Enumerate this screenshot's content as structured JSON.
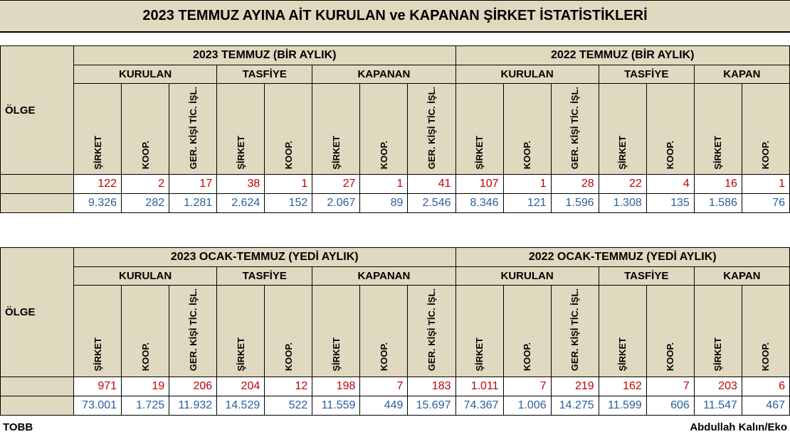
{
  "title": "2023 TEMMUZ AYINA AİT KURULAN ve KAPANAN ŞİRKET İSTATİSTİKLERİ",
  "row_label": "ÖLGE",
  "periods_top": [
    "2023 TEMMUZ (BİR AYLIK)",
    "2022 TEMMUZ (BİR AYLIK)"
  ],
  "periods_bottom": [
    "2023 OCAK-TEMMUZ (YEDİ AYLIK)",
    "2022 OCAK-TEMMUZ (YEDİ AYLIK)"
  ],
  "subgroups": [
    "KURULAN",
    "TASFİYE",
    "KAPANAN",
    "KURULAN",
    "TASFİYE",
    "KAPAN"
  ],
  "subgroup_spans": [
    3,
    2,
    3,
    3,
    2,
    2
  ],
  "columns": [
    "ŞİRKET",
    "KOOP.",
    "GER. KİŞİ TİC. İŞL.",
    "ŞİRKET",
    "KOOP.",
    "ŞİRKET",
    "KOOP.",
    "GER. KİŞİ TİC. İŞL.",
    "ŞİRKET",
    "KOOP.",
    "GER. KİŞİ TİC. İŞL.",
    "ŞİRKET",
    "KOOP.",
    "ŞİRKET",
    "KOOP."
  ],
  "top_red": [
    "122",
    "2",
    "17",
    "38",
    "1",
    "27",
    "1",
    "41",
    "107",
    "1",
    "28",
    "22",
    "4",
    "16",
    "1"
  ],
  "top_blue": [
    "9.326",
    "282",
    "1.281",
    "2.624",
    "152",
    "2.067",
    "89",
    "2.546",
    "8.346",
    "121",
    "1.596",
    "1.308",
    "135",
    "1.586",
    "76"
  ],
  "bot_red": [
    "971",
    "19",
    "206",
    "204",
    "12",
    "198",
    "7",
    "183",
    "1.011",
    "7",
    "219",
    "162",
    "7",
    "203",
    "6"
  ],
  "bot_blue": [
    "73.001",
    "1.725",
    "11.932",
    "14.529",
    "522",
    "11.559",
    "449",
    "15.697",
    "74.367",
    "1.006",
    "14.275",
    "11.599",
    "606",
    "11.547",
    "467"
  ],
  "footer_left": "TOBB",
  "footer_right": "Abdullah Kalın/Eko",
  "colors": {
    "header_bg": "#e0d9c0",
    "red_text": "#c00000",
    "blue_text": "#2860a0",
    "border": "#000000"
  }
}
